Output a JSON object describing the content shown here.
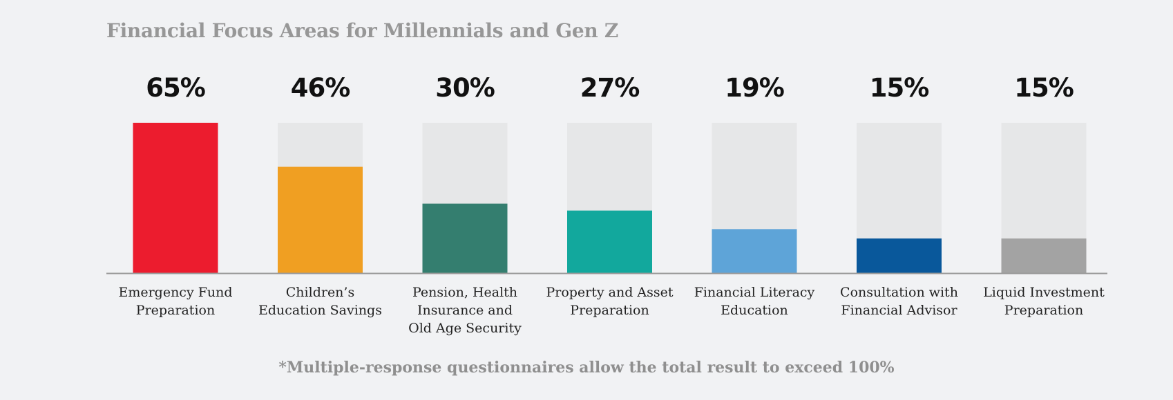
{
  "footnote": "*Multiple-response questionnaires allow the total result to exceed 100%",
  "colors": {
    "track": "#e6e7e8",
    "axis": "#9a9a9a",
    "bars": [
      "#ec1c2e",
      "#f09f22",
      "#347e6f",
      "#12a89d",
      "#5ea4d8",
      "#09589b",
      "#a3a3a3"
    ]
  },
  "chart_data": {
    "type": "bar",
    "title": "Financial Focus Areas for Millennials and Gen Z",
    "categories": [
      [
        "Emergency Fund",
        "Preparation"
      ],
      [
        "Children’s",
        "Education Savings"
      ],
      [
        "Pension, Health",
        "Insurance and",
        "Old Age Security"
      ],
      [
        "Property and Asset",
        "Preparation"
      ],
      [
        "Financial Literacy",
        "Education"
      ],
      [
        "Consultation with",
        "Financial Advisor"
      ],
      [
        "Liquid Investment",
        "Preparation"
      ]
    ],
    "values": [
      65,
      46,
      30,
      27,
      19,
      15,
      15
    ],
    "value_labels": [
      "65%",
      "46%",
      "30%",
      "27%",
      "19%",
      "15%",
      "15%"
    ],
    "ylim": [
      0,
      65
    ],
    "grid": false,
    "legend": "none"
  }
}
